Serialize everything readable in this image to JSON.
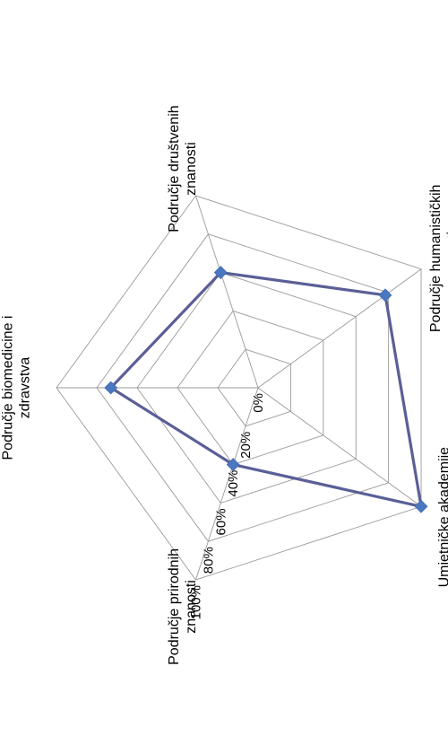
{
  "chart_data": {
    "type": "radar",
    "categories": [
      "Područje biomedicine i zdravstva",
      "Područje društvenih znanosti",
      "Područje humanističkih znanosti",
      "Umjetničke akademije",
      "Područje prirodnih znanosti"
    ],
    "category_label_lines": [
      [
        "Područje biomedicine i",
        "zdravstva"
      ],
      [
        "Područje društvenih",
        "znanosti"
      ],
      [
        "Područje humanističkih",
        "znanosti"
      ],
      [
        "Umjetničke akademije"
      ],
      [
        "Područje prirodnih",
        "znanosti"
      ]
    ],
    "series": [
      {
        "values": [
          0.73,
          0.6,
          0.78,
          1.0,
          0.4
        ]
      }
    ],
    "radial_ticks": [
      "0%",
      "20%",
      "40%",
      "60%",
      "80%",
      "100%"
    ],
    "rlim": [
      0,
      1
    ],
    "grid": true,
    "legend": "none",
    "colors": {
      "series": "#5b5f97",
      "marker": "#4a78c0",
      "grid": "#9a9a9a"
    }
  }
}
